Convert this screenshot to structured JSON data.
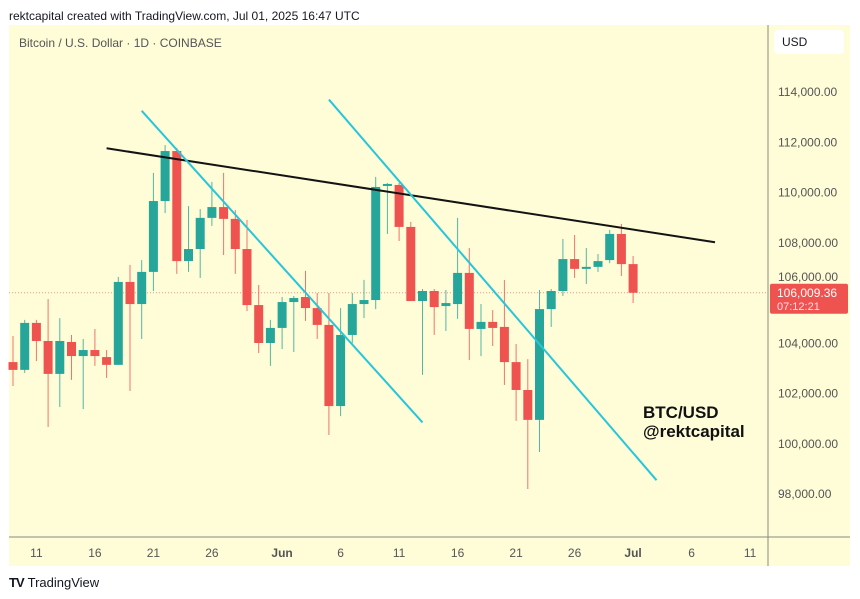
{
  "header": {
    "credit": "rektcapital created with TradingView.com, Jul 01, 2025 16:47 UTC"
  },
  "chart_header": {
    "symbol": "Bitcoin / U.S. Dollar · 1D · COINBASE",
    "currency": "USD"
  },
  "watermark": {
    "line1": "BTC/USD",
    "line2": "@rektcapital"
  },
  "footer": {
    "logo": "TV",
    "brand": "TradingView"
  },
  "colors": {
    "up": "#26a69a",
    "down": "#ef5350",
    "background": "#fefdd8",
    "resistance": "#131313",
    "channel": "#26c6da"
  },
  "chart_data": {
    "type": "candlestick",
    "title": "Bitcoin / U.S. Dollar · 1D · COINBASE",
    "ylim": [
      96000,
      115300
    ],
    "y_ticks": [
      98000,
      100000,
      102000,
      104000,
      106000,
      108000,
      110000,
      112000,
      114000
    ],
    "y_tick_labels": [
      "98,000.00",
      "100,000.00",
      "102,000.00",
      "104,000.00",
      "106,000.00",
      "108,000.00",
      "110,000.00",
      "112,000.00",
      "114,000.00"
    ],
    "x_ticks": [
      {
        "date": "2025-05-11",
        "label": "11",
        "bold": false
      },
      {
        "date": "2025-05-16",
        "label": "16",
        "bold": false
      },
      {
        "date": "2025-05-21",
        "label": "21",
        "bold": false
      },
      {
        "date": "2025-05-26",
        "label": "26",
        "bold": false
      },
      {
        "date": "2025-06-01",
        "label": "Jun",
        "bold": true
      },
      {
        "date": "2025-06-06",
        "label": "6",
        "bold": false
      },
      {
        "date": "2025-06-11",
        "label": "11",
        "bold": false
      },
      {
        "date": "2025-06-16",
        "label": "16",
        "bold": false
      },
      {
        "date": "2025-06-21",
        "label": "21",
        "bold": false
      },
      {
        "date": "2025-06-26",
        "label": "26",
        "bold": false
      },
      {
        "date": "2025-07-01",
        "label": "Jul",
        "bold": true
      },
      {
        "date": "2025-07-06",
        "label": "6",
        "bold": false
      },
      {
        "date": "2025-07-11",
        "label": "11",
        "bold": false
      }
    ],
    "last_price": {
      "value": 106009.36,
      "label": "106,009.36",
      "countdown": "07:12:21"
    },
    "columns": [
      "date",
      "open",
      "high",
      "low",
      "close"
    ],
    "candles": [
      [
        "2025-05-09",
        103250,
        104290,
        102300,
        102940
      ],
      [
        "2025-05-10",
        102940,
        104930,
        102820,
        104810
      ],
      [
        "2025-05-11",
        104810,
        104930,
        103290,
        104090
      ],
      [
        "2025-05-12",
        104090,
        105760,
        100670,
        102780
      ],
      [
        "2025-05-13",
        102780,
        105000,
        101460,
        104090
      ],
      [
        "2025-05-14",
        104050,
        104330,
        102540,
        103490
      ],
      [
        "2025-05-15",
        103490,
        104170,
        101380,
        103730
      ],
      [
        "2025-05-16",
        103730,
        104570,
        103100,
        103490
      ],
      [
        "2025-05-17",
        103450,
        103730,
        102620,
        103140
      ],
      [
        "2025-05-18",
        103140,
        106640,
        103140,
        106440
      ],
      [
        "2025-05-19",
        106440,
        107120,
        102100,
        105560
      ],
      [
        "2025-05-20",
        105560,
        107310,
        104170,
        106840
      ],
      [
        "2025-05-21",
        106840,
        110780,
        106080,
        109660
      ],
      [
        "2025-05-22",
        109660,
        111890,
        109180,
        111650
      ],
      [
        "2025-05-23",
        111650,
        111770,
        106760,
        107270
      ],
      [
        "2025-05-24",
        107270,
        109460,
        106840,
        107750
      ],
      [
        "2025-05-25",
        107750,
        109340,
        106600,
        108990
      ],
      [
        "2025-05-26",
        108990,
        110420,
        108670,
        109420
      ],
      [
        "2025-05-27",
        109420,
        110780,
        107510,
        108950
      ],
      [
        "2025-05-28",
        108950,
        109300,
        106760,
        107750
      ],
      [
        "2025-05-29",
        107750,
        108910,
        105280,
        105520
      ],
      [
        "2025-05-30",
        105520,
        106320,
        103610,
        104010
      ],
      [
        "2025-05-31",
        104010,
        104930,
        103100,
        104610
      ],
      [
        "2025-06-01",
        104610,
        105840,
        103770,
        105640
      ],
      [
        "2025-06-02",
        105640,
        105880,
        103650,
        105800
      ],
      [
        "2025-06-03",
        105840,
        106880,
        104890,
        105400
      ],
      [
        "2025-06-04",
        105400,
        106000,
        104170,
        104730
      ],
      [
        "2025-06-05",
        104730,
        106000,
        100350,
        101500
      ],
      [
        "2025-06-06",
        101500,
        105400,
        101100,
        104330
      ],
      [
        "2025-06-07",
        104330,
        106000,
        104010,
        105560
      ],
      [
        "2025-06-08",
        105560,
        106520,
        105000,
        105720
      ],
      [
        "2025-06-09",
        105720,
        110620,
        105360,
        110220
      ],
      [
        "2025-06-10",
        110260,
        110380,
        108350,
        110340
      ],
      [
        "2025-06-11",
        110300,
        110380,
        108070,
        108630
      ],
      [
        "2025-06-12",
        108630,
        108830,
        105680,
        105680
      ],
      [
        "2025-06-13",
        105680,
        106160,
        102740,
        106080
      ],
      [
        "2025-06-14",
        106080,
        106160,
        104330,
        105440
      ],
      [
        "2025-06-15",
        105480,
        106120,
        104490,
        105600
      ],
      [
        "2025-06-16",
        105560,
        108990,
        104970,
        106800
      ],
      [
        "2025-06-17",
        106800,
        107790,
        103330,
        104570
      ],
      [
        "2025-06-18",
        104570,
        105560,
        103490,
        104850
      ],
      [
        "2025-06-19",
        104850,
        105320,
        103890,
        104610
      ],
      [
        "2025-06-20",
        104650,
        106520,
        102340,
        103250
      ],
      [
        "2025-06-21",
        103250,
        103970,
        100910,
        102140
      ],
      [
        "2025-06-22",
        102140,
        103370,
        98200,
        100950
      ],
      [
        "2025-06-23",
        100950,
        106120,
        99670,
        105360
      ],
      [
        "2025-06-24",
        105360,
        106160,
        104650,
        106080
      ],
      [
        "2025-06-25",
        106080,
        108150,
        105880,
        107350
      ],
      [
        "2025-06-26",
        107350,
        108310,
        106600,
        106960
      ],
      [
        "2025-06-27",
        106960,
        107790,
        106360,
        107040
      ],
      [
        "2025-06-28",
        107040,
        107550,
        106840,
        107270
      ],
      [
        "2025-06-29",
        107310,
        108510,
        107190,
        108350
      ],
      [
        "2025-06-30",
        108350,
        108750,
        106680,
        107150
      ],
      [
        "2025-07-01",
        107150,
        107470,
        105600,
        106009.36
      ]
    ],
    "trend_lines": [
      {
        "kind": "resistance",
        "color": "#131313",
        "from": [
          "2025-05-17",
          111760
        ],
        "to": [
          "2025-07-08",
          108020
        ]
      },
      {
        "kind": "channel",
        "color": "#26c6da",
        "from": [
          "2025-05-20",
          113250
        ],
        "to": [
          "2025-06-13",
          100850
        ]
      },
      {
        "kind": "channel",
        "color": "#26c6da",
        "from": [
          "2025-06-05",
          113700
        ],
        "to": [
          "2025-07-03",
          98550
        ]
      }
    ]
  }
}
